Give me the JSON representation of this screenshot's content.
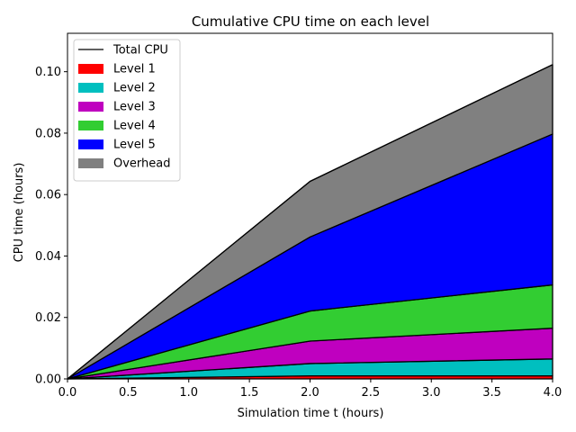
{
  "chart_data": {
    "type": "area",
    "stacked": true,
    "title": "Cumulative CPU time on each level",
    "xlabel": "Simulation time t (hours)",
    "ylabel": "CPU time (hours)",
    "xlim": [
      0.0,
      4.0
    ],
    "ylim": [
      0.0,
      0.1125
    ],
    "x": [
      0.0,
      2.0,
      4.0
    ],
    "xticks": [
      "0.0",
      "0.5",
      "1.0",
      "1.5",
      "2.0",
      "2.5",
      "3.0",
      "3.5",
      "4.0"
    ],
    "yticks": [
      "0.00",
      "0.02",
      "0.04",
      "0.06",
      "0.08",
      "0.10"
    ],
    "grid": false,
    "legend_position": "top-left",
    "total": {
      "name": "Total CPU",
      "color": "#000000",
      "values": [
        0.0,
        0.0643,
        0.1023
      ]
    },
    "series": [
      {
        "name": "Level 1",
        "color": "#ff0000",
        "values": [
          0.0,
          0.001,
          0.001
        ]
      },
      {
        "name": "Level 2",
        "color": "#00bfbf",
        "values": [
          0.0,
          0.004,
          0.0055
        ]
      },
      {
        "name": "Level 3",
        "color": "#bf00bf",
        "values": [
          0.0,
          0.0073,
          0.01
        ]
      },
      {
        "name": "Level 4",
        "color": "#32cd32",
        "values": [
          0.0,
          0.0098,
          0.0141
        ]
      },
      {
        "name": "Level 5",
        "color": "#0000ff",
        "values": [
          0.0,
          0.0241,
          0.0491
        ]
      },
      {
        "name": "Overhead",
        "color": "#808080",
        "values": [
          0.0,
          0.0181,
          0.0226
        ]
      }
    ]
  }
}
